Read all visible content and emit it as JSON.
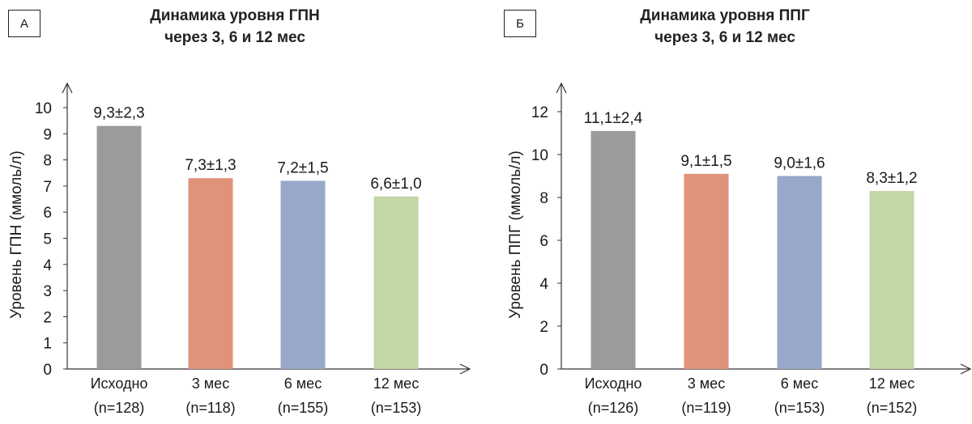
{
  "chart_data": [
    {
      "type": "bar",
      "panel_label": "А",
      "title": "Динамика уровня ГПН через 3, 6 и 12 мес",
      "title_lines": [
        "Динамика уровня ГПН",
        "через 3, 6 и 12 мес"
      ],
      "ylabel": "Уровень ГПН (ммоль/л)",
      "xlabel": "",
      "ylim": [
        0,
        10
      ],
      "yticks": [
        0,
        1,
        2,
        3,
        4,
        5,
        6,
        7,
        8,
        9,
        10
      ],
      "categories": [
        "Исходно",
        "3 мес",
        "6 мес",
        "12 мес"
      ],
      "category_n": [
        "(n=128)",
        "(n=118)",
        "(n=155)",
        "(n=153)"
      ],
      "values": [
        9.3,
        7.3,
        7.2,
        6.6
      ],
      "value_labels": [
        "9,3±2,3",
        "7,3±1,3",
        "7,2±1,5",
        "6,6±1,0"
      ],
      "colors": [
        "#9b9b99",
        "#e0927a",
        "#98a8ca",
        "#c2d6a6"
      ],
      "grid": false,
      "legend": "none"
    },
    {
      "type": "bar",
      "panel_label": "Б",
      "title": "Динамика уровня ППГ через 3, 6 и 12 мес",
      "title_lines": [
        "Динамика уровня ППГ",
        "через 3, 6 и 12 мес"
      ],
      "ylabel": "Уровень ППГ (ммоль/л)",
      "xlabel": "",
      "ylim": [
        0,
        12
      ],
      "yticks": [
        0,
        2,
        4,
        6,
        8,
        10,
        12
      ],
      "categories": [
        "Исходно",
        "3 мес",
        "6 мес",
        "12 мес"
      ],
      "category_n": [
        "(n=126)",
        "(n=119)",
        "(n=153)",
        "(n=152)"
      ],
      "values": [
        11.1,
        9.1,
        9.0,
        8.3
      ],
      "value_labels": [
        "11,1±2,4",
        "9,1±1,5",
        "9,0±1,6",
        "8,3±1,2"
      ],
      "colors": [
        "#9b9b99",
        "#e0927a",
        "#98a8ca",
        "#c2d6a6"
      ],
      "grid": false,
      "legend": "none"
    }
  ]
}
